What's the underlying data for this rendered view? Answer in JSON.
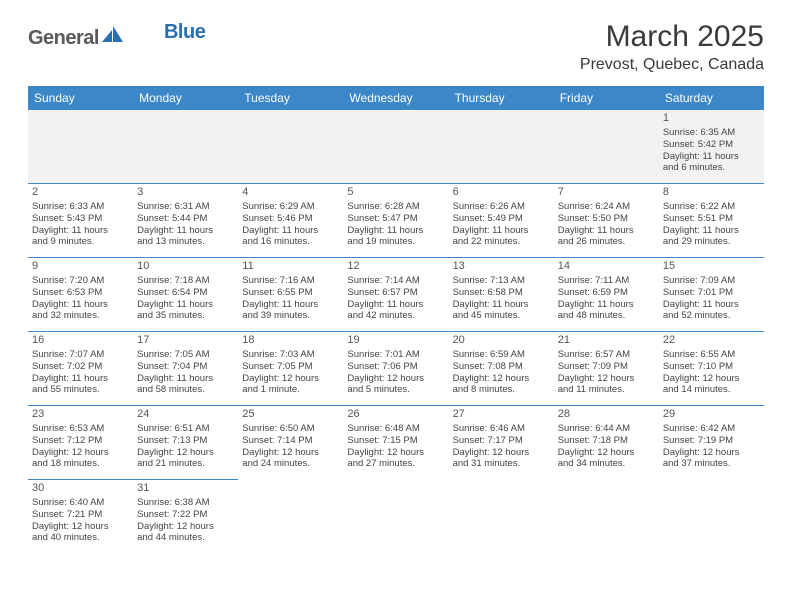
{
  "logo": {
    "general": "General",
    "blue": "Blue"
  },
  "title": "March 2025",
  "location": "Prevost, Quebec, Canada",
  "colors": {
    "header_bg": "#3b87c8",
    "header_text": "#ffffff",
    "border": "#3b87c8",
    "logo_blue": "#2a6fb0",
    "logo_gray": "#5a5a5a"
  },
  "weekdays": [
    "Sunday",
    "Monday",
    "Tuesday",
    "Wednesday",
    "Thursday",
    "Friday",
    "Saturday"
  ],
  "weeks": [
    [
      null,
      null,
      null,
      null,
      null,
      null,
      {
        "n": "1",
        "sr": "Sunrise: 6:35 AM",
        "ss": "Sunset: 5:42 PM",
        "dl1": "Daylight: 11 hours",
        "dl2": "and 6 minutes."
      }
    ],
    [
      {
        "n": "2",
        "sr": "Sunrise: 6:33 AM",
        "ss": "Sunset: 5:43 PM",
        "dl1": "Daylight: 11 hours",
        "dl2": "and 9 minutes."
      },
      {
        "n": "3",
        "sr": "Sunrise: 6:31 AM",
        "ss": "Sunset: 5:44 PM",
        "dl1": "Daylight: 11 hours",
        "dl2": "and 13 minutes."
      },
      {
        "n": "4",
        "sr": "Sunrise: 6:29 AM",
        "ss": "Sunset: 5:46 PM",
        "dl1": "Daylight: 11 hours",
        "dl2": "and 16 minutes."
      },
      {
        "n": "5",
        "sr": "Sunrise: 6:28 AM",
        "ss": "Sunset: 5:47 PM",
        "dl1": "Daylight: 11 hours",
        "dl2": "and 19 minutes."
      },
      {
        "n": "6",
        "sr": "Sunrise: 6:26 AM",
        "ss": "Sunset: 5:49 PM",
        "dl1": "Daylight: 11 hours",
        "dl2": "and 22 minutes."
      },
      {
        "n": "7",
        "sr": "Sunrise: 6:24 AM",
        "ss": "Sunset: 5:50 PM",
        "dl1": "Daylight: 11 hours",
        "dl2": "and 26 minutes."
      },
      {
        "n": "8",
        "sr": "Sunrise: 6:22 AM",
        "ss": "Sunset: 5:51 PM",
        "dl1": "Daylight: 11 hours",
        "dl2": "and 29 minutes."
      }
    ],
    [
      {
        "n": "9",
        "sr": "Sunrise: 7:20 AM",
        "ss": "Sunset: 6:53 PM",
        "dl1": "Daylight: 11 hours",
        "dl2": "and 32 minutes."
      },
      {
        "n": "10",
        "sr": "Sunrise: 7:18 AM",
        "ss": "Sunset: 6:54 PM",
        "dl1": "Daylight: 11 hours",
        "dl2": "and 35 minutes."
      },
      {
        "n": "11",
        "sr": "Sunrise: 7:16 AM",
        "ss": "Sunset: 6:55 PM",
        "dl1": "Daylight: 11 hours",
        "dl2": "and 39 minutes."
      },
      {
        "n": "12",
        "sr": "Sunrise: 7:14 AM",
        "ss": "Sunset: 6:57 PM",
        "dl1": "Daylight: 11 hours",
        "dl2": "and 42 minutes."
      },
      {
        "n": "13",
        "sr": "Sunrise: 7:13 AM",
        "ss": "Sunset: 6:58 PM",
        "dl1": "Daylight: 11 hours",
        "dl2": "and 45 minutes."
      },
      {
        "n": "14",
        "sr": "Sunrise: 7:11 AM",
        "ss": "Sunset: 6:59 PM",
        "dl1": "Daylight: 11 hours",
        "dl2": "and 48 minutes."
      },
      {
        "n": "15",
        "sr": "Sunrise: 7:09 AM",
        "ss": "Sunset: 7:01 PM",
        "dl1": "Daylight: 11 hours",
        "dl2": "and 52 minutes."
      }
    ],
    [
      {
        "n": "16",
        "sr": "Sunrise: 7:07 AM",
        "ss": "Sunset: 7:02 PM",
        "dl1": "Daylight: 11 hours",
        "dl2": "and 55 minutes."
      },
      {
        "n": "17",
        "sr": "Sunrise: 7:05 AM",
        "ss": "Sunset: 7:04 PM",
        "dl1": "Daylight: 11 hours",
        "dl2": "and 58 minutes."
      },
      {
        "n": "18",
        "sr": "Sunrise: 7:03 AM",
        "ss": "Sunset: 7:05 PM",
        "dl1": "Daylight: 12 hours",
        "dl2": "and 1 minute."
      },
      {
        "n": "19",
        "sr": "Sunrise: 7:01 AM",
        "ss": "Sunset: 7:06 PM",
        "dl1": "Daylight: 12 hours",
        "dl2": "and 5 minutes."
      },
      {
        "n": "20",
        "sr": "Sunrise: 6:59 AM",
        "ss": "Sunset: 7:08 PM",
        "dl1": "Daylight: 12 hours",
        "dl2": "and 8 minutes."
      },
      {
        "n": "21",
        "sr": "Sunrise: 6:57 AM",
        "ss": "Sunset: 7:09 PM",
        "dl1": "Daylight: 12 hours",
        "dl2": "and 11 minutes."
      },
      {
        "n": "22",
        "sr": "Sunrise: 6:55 AM",
        "ss": "Sunset: 7:10 PM",
        "dl1": "Daylight: 12 hours",
        "dl2": "and 14 minutes."
      }
    ],
    [
      {
        "n": "23",
        "sr": "Sunrise: 6:53 AM",
        "ss": "Sunset: 7:12 PM",
        "dl1": "Daylight: 12 hours",
        "dl2": "and 18 minutes."
      },
      {
        "n": "24",
        "sr": "Sunrise: 6:51 AM",
        "ss": "Sunset: 7:13 PM",
        "dl1": "Daylight: 12 hours",
        "dl2": "and 21 minutes."
      },
      {
        "n": "25",
        "sr": "Sunrise: 6:50 AM",
        "ss": "Sunset: 7:14 PM",
        "dl1": "Daylight: 12 hours",
        "dl2": "and 24 minutes."
      },
      {
        "n": "26",
        "sr": "Sunrise: 6:48 AM",
        "ss": "Sunset: 7:15 PM",
        "dl1": "Daylight: 12 hours",
        "dl2": "and 27 minutes."
      },
      {
        "n": "27",
        "sr": "Sunrise: 6:46 AM",
        "ss": "Sunset: 7:17 PM",
        "dl1": "Daylight: 12 hours",
        "dl2": "and 31 minutes."
      },
      {
        "n": "28",
        "sr": "Sunrise: 6:44 AM",
        "ss": "Sunset: 7:18 PM",
        "dl1": "Daylight: 12 hours",
        "dl2": "and 34 minutes."
      },
      {
        "n": "29",
        "sr": "Sunrise: 6:42 AM",
        "ss": "Sunset: 7:19 PM",
        "dl1": "Daylight: 12 hours",
        "dl2": "and 37 minutes."
      }
    ],
    [
      {
        "n": "30",
        "sr": "Sunrise: 6:40 AM",
        "ss": "Sunset: 7:21 PM",
        "dl1": "Daylight: 12 hours",
        "dl2": "and 40 minutes."
      },
      {
        "n": "31",
        "sr": "Sunrise: 6:38 AM",
        "ss": "Sunset: 7:22 PM",
        "dl1": "Daylight: 12 hours",
        "dl2": "and 44 minutes."
      },
      null,
      null,
      null,
      null,
      null
    ]
  ]
}
